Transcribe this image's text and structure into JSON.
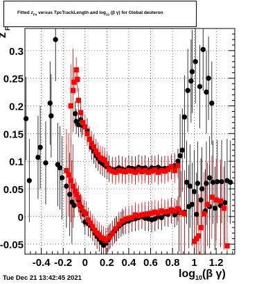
{
  "chart_data": {
    "type": "scatter",
    "title": "Fitted z_Fit versus TpcTrackLength and log10(βγ) for Global deuteron",
    "ylabel": "z_Fit",
    "xlabel": "log10(βγ)",
    "xlim": [
      -0.55,
      1.37
    ],
    "ylim": [
      -0.068,
      0.34
    ],
    "x_ticks": [
      -0.4,
      -0.2,
      0,
      0.2,
      0.4,
      0.6,
      0.8,
      1,
      1.2
    ],
    "x_tick_labels": [
      "-0.4",
      "-0.2",
      "0",
      "0.2",
      "0.4",
      "0.6",
      "0.8",
      "1",
      "1.2"
    ],
    "y_ticks": [
      -0.05,
      0,
      0.05,
      0.1,
      0.15,
      0.2,
      0.25,
      0.3
    ],
    "y_tick_labels": [
      "-0.05",
      "0",
      "0.05",
      "0.1",
      "0.15",
      "0.2",
      "0.25",
      "0.3"
    ],
    "grid": true,
    "series": [
      {
        "color": "#000000",
        "points": [
          [
            -0.54,
            0.177
          ],
          [
            -0.51,
            0.065
          ],
          [
            -0.43,
            0.107
          ],
          [
            -0.41,
            0.125
          ],
          [
            -0.36,
            0.097
          ],
          [
            -0.32,
            0.205
          ],
          [
            -0.31,
            0.182
          ],
          [
            -0.27,
            0.32
          ],
          [
            -0.25,
            0.094
          ],
          [
            -0.23,
            0.088
          ],
          [
            -0.21,
            0.07
          ],
          [
            -0.17,
            0.055
          ],
          [
            -0.14,
            0.04
          ],
          [
            -0.12,
            0.026
          ],
          [
            -0.1,
            0.02
          ],
          [
            -0.09,
            0.186
          ],
          [
            -0.08,
            0.172
          ],
          [
            -0.06,
            0.166
          ],
          [
            -0.04,
            0.175
          ],
          [
            -0.03,
            0.165
          ],
          [
            -0.06,
            0.03
          ],
          [
            -0.04,
            0.018
          ],
          [
            -0.03,
            0.011
          ],
          [
            -0.01,
            0.004
          ],
          [
            0.0,
            -0.01
          ],
          [
            0.02,
            0.155
          ],
          [
            0.04,
            0.14
          ],
          [
            0.06,
            0.125
          ],
          [
            0.08,
            0.118
          ],
          [
            0.1,
            0.11
          ],
          [
            0.12,
            0.105
          ],
          [
            0.14,
            0.099
          ],
          [
            0.16,
            0.096
          ],
          [
            0.18,
            0.093
          ],
          [
            0.2,
            0.09
          ],
          [
            0.03,
            -0.013
          ],
          [
            0.05,
            -0.016
          ],
          [
            0.07,
            -0.022
          ],
          [
            0.09,
            -0.03
          ],
          [
            0.11,
            -0.036
          ],
          [
            0.13,
            -0.041
          ],
          [
            0.15,
            -0.047
          ],
          [
            0.17,
            -0.052
          ],
          [
            0.19,
            -0.048
          ],
          [
            0.21,
            -0.042
          ],
          [
            0.23,
            -0.035
          ],
          [
            0.25,
            -0.03
          ],
          [
            0.27,
            -0.026
          ],
          [
            0.29,
            -0.022
          ],
          [
            0.31,
            -0.017
          ],
          [
            0.33,
            -0.014
          ],
          [
            0.35,
            -0.011
          ],
          [
            0.37,
            -0.009
          ],
          [
            0.4,
            -0.008
          ],
          [
            0.43,
            -0.005
          ],
          [
            0.46,
            -0.004
          ],
          [
            0.49,
            -0.002
          ],
          [
            0.52,
            0.0
          ],
          [
            0.55,
            -0.003
          ],
          [
            0.58,
            -0.004
          ],
          [
            0.61,
            -0.006
          ],
          [
            0.64,
            -0.004
          ],
          [
            0.67,
            0.0
          ],
          [
            0.7,
            -0.002
          ],
          [
            0.73,
            0.005
          ],
          [
            0.76,
            0.004
          ],
          [
            0.79,
            0.01
          ],
          [
            0.82,
            0.003
          ],
          [
            0.84,
            0.007
          ],
          [
            0.86,
            0.012
          ],
          [
            0.22,
            0.088
          ],
          [
            0.25,
            0.085
          ],
          [
            0.28,
            0.085
          ],
          [
            0.31,
            0.088
          ],
          [
            0.34,
            0.086
          ],
          [
            0.37,
            0.084
          ],
          [
            0.4,
            0.088
          ],
          [
            0.43,
            0.087
          ],
          [
            0.46,
            0.086
          ],
          [
            0.49,
            0.089
          ],
          [
            0.52,
            0.087
          ],
          [
            0.55,
            0.088
          ],
          [
            0.58,
            0.084
          ],
          [
            0.61,
            0.088
          ],
          [
            0.64,
            0.087
          ],
          [
            0.67,
            0.089
          ],
          [
            0.7,
            0.086
          ],
          [
            0.73,
            0.087
          ],
          [
            0.76,
            0.087
          ],
          [
            0.79,
            0.09
          ],
          [
            0.82,
            0.092
          ],
          [
            0.85,
            0.1
          ],
          [
            0.87,
            0.11
          ],
          [
            0.89,
            0.12
          ],
          [
            0.91,
            0.18
          ],
          [
            0.94,
            0.228
          ],
          [
            0.97,
            0.245
          ],
          [
            0.98,
            0.262
          ],
          [
            1.01,
            0.28
          ],
          [
            1.05,
            0.235
          ],
          [
            1.08,
            0.302
          ],
          [
            1.11,
            0.225
          ],
          [
            1.13,
            0.25
          ],
          [
            1.16,
            0.205
          ],
          [
            0.93,
            0.062
          ],
          [
            0.96,
            0.055
          ],
          [
            1.0,
            0.045
          ],
          [
            1.03,
            0.06
          ],
          [
            1.07,
            0.05
          ],
          [
            1.11,
            0.06
          ],
          [
            1.14,
            0.07
          ],
          [
            1.17,
            0.062
          ],
          [
            1.21,
            0.063
          ],
          [
            1.25,
            0.063
          ],
          [
            1.3,
            0.065
          ],
          [
            1.33,
            0.062
          ],
          [
            0.91,
            0.008
          ],
          [
            0.95,
            0.018
          ],
          [
            0.98,
            0.022
          ],
          [
            1.02,
            0.004
          ],
          [
            1.06,
            0.03
          ],
          [
            1.1,
            0.01
          ],
          [
            1.14,
            0.018
          ],
          [
            1.19,
            0.015
          ],
          [
            1.24,
            0.02
          ],
          [
            1.28,
            0.025
          ]
        ]
      },
      {
        "color": "#ff0000",
        "points": [
          [
            -0.13,
            0.2
          ],
          [
            -0.11,
            0.228
          ],
          [
            -0.1,
            0.243
          ],
          [
            -0.08,
            0.265
          ],
          [
            -0.07,
            0.248
          ],
          [
            -0.06,
            0.21
          ],
          [
            -0.04,
            0.188
          ],
          [
            -0.02,
            0.17
          ],
          [
            0.0,
            0.162
          ],
          [
            0.02,
            0.15
          ],
          [
            0.04,
            0.14
          ],
          [
            0.06,
            0.132
          ],
          [
            0.08,
            0.126
          ],
          [
            0.1,
            0.118
          ],
          [
            0.12,
            0.112
          ],
          [
            0.14,
            0.106
          ],
          [
            0.16,
            0.104
          ],
          [
            0.18,
            0.102
          ],
          [
            0.2,
            0.095
          ],
          [
            -0.17,
            0.083
          ],
          [
            -0.15,
            0.075
          ],
          [
            -0.13,
            0.065
          ],
          [
            -0.11,
            0.055
          ],
          [
            -0.09,
            0.046
          ],
          [
            -0.08,
            0.04
          ],
          [
            -0.06,
            0.034
          ],
          [
            -0.05,
            0.022
          ],
          [
            -0.03,
            0.015
          ],
          [
            -0.01,
            0.008
          ],
          [
            0.01,
            0.005
          ],
          [
            0.03,
            -0.006
          ],
          [
            0.05,
            -0.012
          ],
          [
            0.07,
            -0.018
          ],
          [
            0.09,
            -0.025
          ],
          [
            0.11,
            -0.03
          ],
          [
            0.13,
            -0.033
          ],
          [
            0.15,
            -0.038
          ],
          [
            0.17,
            -0.04
          ],
          [
            0.19,
            -0.043
          ],
          [
            0.22,
            -0.038
          ],
          [
            0.25,
            -0.031
          ],
          [
            0.28,
            -0.022
          ],
          [
            0.31,
            -0.014
          ],
          [
            0.34,
            -0.008
          ],
          [
            0.37,
            -0.005
          ],
          [
            0.4,
            -0.003
          ],
          [
            0.43,
            -0.002
          ],
          [
            0.46,
            0.003
          ],
          [
            0.49,
            0.001
          ],
          [
            0.52,
            0.003
          ],
          [
            0.55,
            0.004
          ],
          [
            0.58,
            0.005
          ],
          [
            0.61,
            0.006
          ],
          [
            0.64,
            0.008
          ],
          [
            0.67,
            0.006
          ],
          [
            0.7,
            0.01
          ],
          [
            0.73,
            0.008
          ],
          [
            0.76,
            0.009
          ],
          [
            0.79,
            0.012
          ],
          [
            0.82,
            0.01
          ],
          [
            0.85,
            0.014
          ],
          [
            0.88,
            0.007
          ],
          [
            0.91,
            0.005
          ],
          [
            0.22,
            0.085
          ],
          [
            0.25,
            0.082
          ],
          [
            0.28,
            0.08
          ],
          [
            0.31,
            0.083
          ],
          [
            0.34,
            0.082
          ],
          [
            0.37,
            0.081
          ],
          [
            0.4,
            0.083
          ],
          [
            0.43,
            0.082
          ],
          [
            0.46,
            0.08
          ],
          [
            0.49,
            0.084
          ],
          [
            0.52,
            0.081
          ],
          [
            0.55,
            0.083
          ],
          [
            0.58,
            0.08
          ],
          [
            0.61,
            0.082
          ],
          [
            0.64,
            0.084
          ],
          [
            0.67,
            0.08
          ],
          [
            0.7,
            0.083
          ],
          [
            0.73,
            0.082
          ],
          [
            0.76,
            0.085
          ],
          [
            0.79,
            0.09
          ],
          [
            0.82,
            0.083
          ],
          [
            0.85,
            0.092
          ],
          [
            1.0,
            -0.045
          ],
          [
            1.02,
            -0.04
          ],
          [
            1.04,
            -0.035
          ],
          [
            1.06,
            -0.02
          ],
          [
            1.09,
            0.005
          ],
          [
            1.12,
            0.022
          ],
          [
            1.16,
            0.035
          ],
          [
            1.2,
            0.03
          ],
          [
            1.24,
            0.028
          ],
          [
            1.27,
            0.015
          ],
          [
            1.3,
            -0.053
          ]
        ]
      }
    ]
  },
  "labels": {
    "title": "Fitted z_Fit versus TpcTrackLength and log10(βγ) for Global deuteron",
    "title_pre": "Fitted",
    "title_z": "z",
    "title_sub": "Fit",
    "title_mid": "versus TpcTrackLength and log",
    "title_log_sub": "10",
    "title_post": "(β γ) for Global deuteron",
    "ylabel_main": "z",
    "ylabel_sub": "Fit",
    "xlabel_main": "log",
    "xlabel_sub": "10",
    "xlabel_post": "(β γ)",
    "timestamp": "Tue Dec 21 13:42:45 2021"
  }
}
